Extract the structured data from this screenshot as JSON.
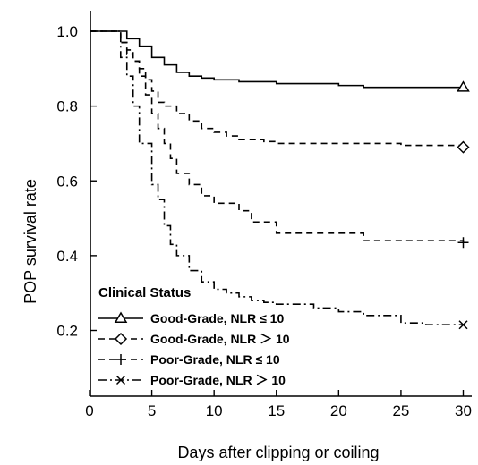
{
  "chart_data": {
    "type": "line",
    "title": "",
    "xlabel": "Days after clipping or coiling",
    "ylabel": "POP survival rate",
    "xlim": [
      0,
      31
    ],
    "ylim": [
      0.1,
      1.05
    ],
    "x_ticks": [
      0,
      5,
      10,
      15,
      20,
      25,
      30
    ],
    "x_tick_labels": [
      "0",
      "5",
      "10",
      "15",
      "20",
      "25",
      "30"
    ],
    "y_ticks": [
      0.2,
      0.4,
      0.6,
      0.8,
      1.0
    ],
    "y_tick_labels": [
      "0.2",
      "0.4",
      "0.6",
      "0.8",
      "1.0"
    ],
    "grid": false,
    "legend": {
      "title": "Clinical Status",
      "placement": "bottom-left"
    },
    "series": [
      {
        "name": "Good-Grade, NLR ≤ 10",
        "line_style": "solid",
        "marker": "triangle",
        "color": "#000000",
        "points": [
          [
            0,
            1.0
          ],
          [
            2,
            1.0
          ],
          [
            3,
            0.98
          ],
          [
            4,
            0.96
          ],
          [
            5,
            0.93
          ],
          [
            6,
            0.91
          ],
          [
            7,
            0.89
          ],
          [
            8,
            0.88
          ],
          [
            9,
            0.875
          ],
          [
            10,
            0.87
          ],
          [
            12,
            0.865
          ],
          [
            15,
            0.86
          ],
          [
            20,
            0.855
          ],
          [
            22,
            0.85
          ],
          [
            30,
            0.85
          ]
        ],
        "end_marker": [
          30,
          0.85
        ]
      },
      {
        "name": "Good-Grade, NLR ＞ 10",
        "line_style": "dashed",
        "marker": "diamond",
        "color": "#000000",
        "points": [
          [
            0,
            1.0
          ],
          [
            2,
            1.0
          ],
          [
            2.5,
            0.97
          ],
          [
            3,
            0.94
          ],
          [
            3.5,
            0.92
          ],
          [
            4,
            0.9
          ],
          [
            4.5,
            0.87
          ],
          [
            5,
            0.84
          ],
          [
            5.5,
            0.81
          ],
          [
            6,
            0.8
          ],
          [
            7,
            0.78
          ],
          [
            8,
            0.76
          ],
          [
            9,
            0.74
          ],
          [
            10,
            0.73
          ],
          [
            11,
            0.72
          ],
          [
            12,
            0.71
          ],
          [
            14,
            0.705
          ],
          [
            15,
            0.7
          ],
          [
            20,
            0.7
          ],
          [
            25,
            0.695
          ],
          [
            30,
            0.69
          ]
        ],
        "end_marker": [
          30,
          0.69
        ]
      },
      {
        "name": "Poor-Grade, NLR ≤ 10",
        "line_style": "dashed",
        "marker": "plus",
        "color": "#000000",
        "points": [
          [
            0,
            1.0
          ],
          [
            2,
            1.0
          ],
          [
            2.5,
            0.97
          ],
          [
            3,
            0.95
          ],
          [
            3.5,
            0.92
          ],
          [
            4,
            0.88
          ],
          [
            4.5,
            0.83
          ],
          [
            5,
            0.78
          ],
          [
            5.5,
            0.74
          ],
          [
            6,
            0.7
          ],
          [
            6.5,
            0.66
          ],
          [
            7,
            0.62
          ],
          [
            8,
            0.59
          ],
          [
            9,
            0.56
          ],
          [
            10,
            0.54
          ],
          [
            12,
            0.52
          ],
          [
            13,
            0.49
          ],
          [
            15,
            0.46
          ],
          [
            20,
            0.46
          ],
          [
            22,
            0.44
          ],
          [
            30,
            0.435
          ]
        ],
        "end_marker": [
          30,
          0.435
        ]
      },
      {
        "name": "Poor-Grade, NLR ＞ 10",
        "line_style": "dashdot",
        "marker": "x",
        "color": "#000000",
        "points": [
          [
            0,
            1.0
          ],
          [
            2,
            1.0
          ],
          [
            2.5,
            0.93
          ],
          [
            3,
            0.88
          ],
          [
            3.5,
            0.8
          ],
          [
            4,
            0.7
          ],
          [
            5,
            0.59
          ],
          [
            5.5,
            0.55
          ],
          [
            6,
            0.48
          ],
          [
            6.5,
            0.43
          ],
          [
            7,
            0.4
          ],
          [
            8,
            0.36
          ],
          [
            9,
            0.33
          ],
          [
            10,
            0.31
          ],
          [
            11,
            0.3
          ],
          [
            12,
            0.29
          ],
          [
            13,
            0.28
          ],
          [
            14,
            0.275
          ],
          [
            15,
            0.27
          ],
          [
            18,
            0.26
          ],
          [
            20,
            0.25
          ],
          [
            22,
            0.24
          ],
          [
            25,
            0.22
          ],
          [
            27,
            0.215
          ],
          [
            30,
            0.215
          ]
        ],
        "end_marker": [
          30,
          0.215
        ]
      }
    ]
  }
}
